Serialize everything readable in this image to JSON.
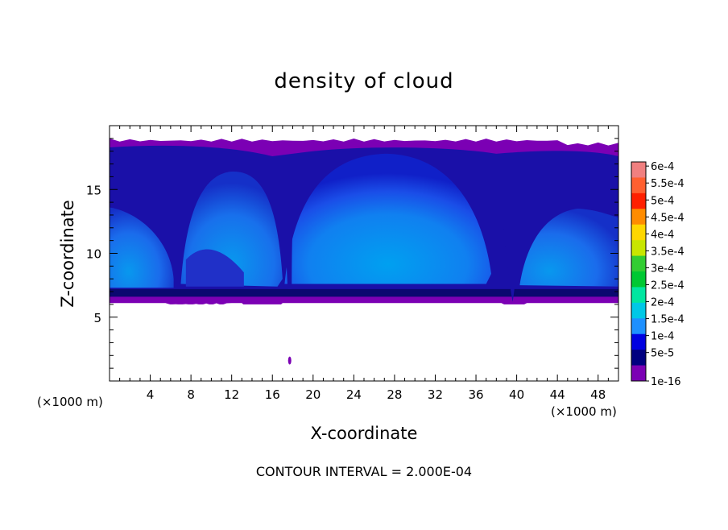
{
  "chart_data": {
    "type": "heatmap",
    "title": "density of cloud",
    "xlabel": "X-coordinate",
    "ylabel": "Z-coordinate",
    "x_unit_note": "(×1000 m)",
    "x_unit_note_right": "(×1000 m)",
    "xlim": [
      0,
      50
    ],
    "ylim": [
      0,
      20
    ],
    "x_ticks": [
      4,
      8,
      12,
      16,
      20,
      24,
      28,
      32,
      36,
      40,
      44,
      48
    ],
    "y_ticks": [
      5,
      10,
      15
    ],
    "footer": "CONTOUR INTERVAL = 2.000E-04",
    "colorbar": {
      "labels": [
        "6e-4",
        "5.5e-4",
        "5e-4",
        "4.5e-4",
        "4e-4",
        "3.5e-4",
        "3e-4",
        "2.5e-4",
        "2e-4",
        "1.5e-4",
        "1e-4",
        "5e-5",
        "1e-16"
      ],
      "colors": [
        "#f08080",
        "#ff6030",
        "#ff2000",
        "#ff8c00",
        "#ffd700",
        "#c8e600",
        "#32cd32",
        "#00c832",
        "#00e6a0",
        "#00c8e6",
        "#1e90ff",
        "#0000e0",
        "#000080",
        "#7b00b4"
      ]
    },
    "regions": {
      "cloud_base_z": 6.1,
      "cloud_top_z": 19.0,
      "background": "#ffffff"
    }
  }
}
